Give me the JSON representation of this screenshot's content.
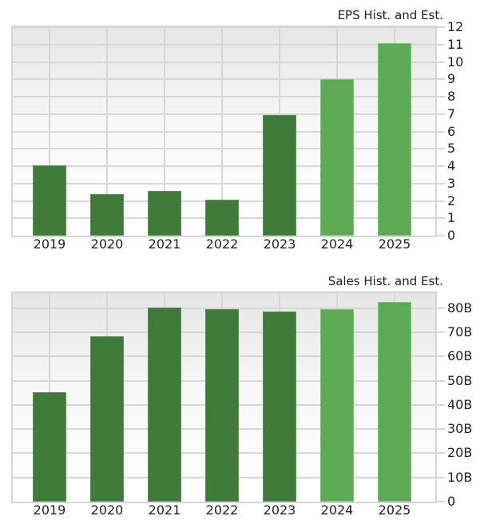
{
  "chart_data": [
    {
      "type": "bar",
      "title": "EPS Hist. and Est.",
      "xlabel": "",
      "ylabel": "",
      "categories": [
        "2019",
        "2020",
        "2021",
        "2022",
        "2023",
        "2024",
        "2025"
      ],
      "values": [
        4.03,
        2.38,
        2.57,
        2.06,
        6.92,
        8.99,
        11.1
      ],
      "bar_kinds": [
        "hist",
        "hist",
        "hist",
        "hist",
        "hist",
        "est",
        "est"
      ],
      "ylim": [
        0,
        12
      ],
      "yticks": [
        "0",
        "1",
        "2",
        "3",
        "4",
        "5",
        "6",
        "7",
        "8",
        "9",
        "10",
        "11",
        "12"
      ],
      "ytick_values": [
        0,
        1,
        2,
        3,
        4,
        5,
        6,
        7,
        8,
        9,
        10,
        11,
        12
      ],
      "y_axis_position": "right",
      "grid": true,
      "legend": "none"
    },
    {
      "type": "bar",
      "title": "Sales Hist. and Est.",
      "xlabel": "",
      "ylabel": "",
      "categories": [
        "2019",
        "2020",
        "2021",
        "2022",
        "2023",
        "2024",
        "2025"
      ],
      "values": [
        45.1,
        68.4,
        80.3,
        79.6,
        78.6,
        79.6,
        82.6
      ],
      "units": "B",
      "bar_kinds": [
        "hist",
        "hist",
        "hist",
        "hist",
        "hist",
        "est",
        "est"
      ],
      "ylim": [
        0,
        86.2
      ],
      "yticks": [
        "0",
        "10B",
        "20B",
        "30B",
        "40B",
        "50B",
        "60B",
        "70B",
        "80B"
      ],
      "ytick_values": [
        0,
        10,
        20,
        30,
        40,
        50,
        60,
        70,
        80
      ],
      "y_axis_position": "right",
      "grid": true,
      "legend": "none"
    }
  ],
  "colors": {
    "historical": "#3f7a3a",
    "estimate": "#5caa54",
    "grid": "#d6d6d6"
  }
}
